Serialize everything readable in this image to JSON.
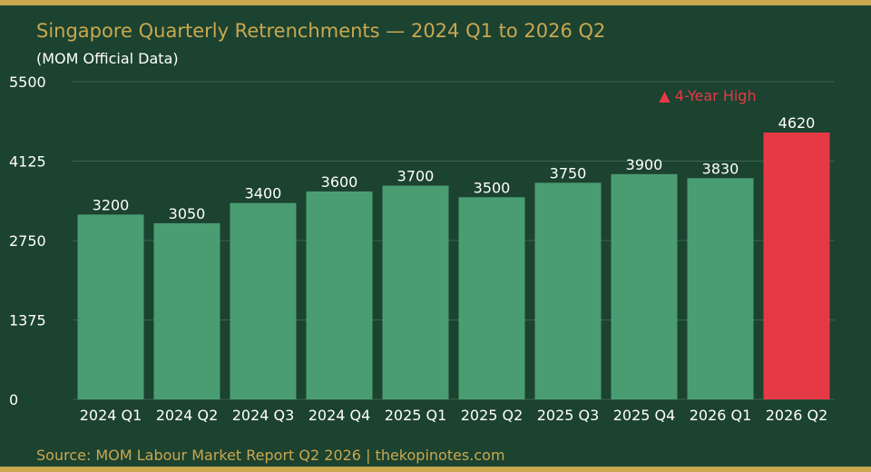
{
  "chart_data": {
    "type": "bar",
    "title": "Singapore Quarterly Retrenchments — 2024 Q1 to 2026 Q2",
    "subtitle": "(MOM Official Data)",
    "categories": [
      "2024 Q1",
      "2024 Q2",
      "2024 Q3",
      "2024 Q4",
      "2025 Q1",
      "2025 Q2",
      "2025 Q3",
      "2025 Q4",
      "2026 Q1",
      "2026 Q2"
    ],
    "values": [
      3200,
      3050,
      3400,
      3600,
      3700,
      3500,
      3750,
      3900,
      3830,
      4620
    ],
    "ylim": [
      0,
      5500
    ],
    "yticks": [
      "0",
      "1375",
      "2750",
      "4125",
      "5500"
    ],
    "xlabel": "",
    "ylabel": "",
    "grid": true,
    "highlight_index": 9,
    "annotation": "▲ 4-Year High",
    "colors": {
      "bar": "#4a9d72",
      "highlight": "#e63946",
      "background": "#1c4230",
      "accent": "#c9a850",
      "grid": "#3a6650"
    }
  },
  "footer": {
    "source": "Source: MOM Labour Market Report Q2 2026  |  thekopinotes.com"
  }
}
